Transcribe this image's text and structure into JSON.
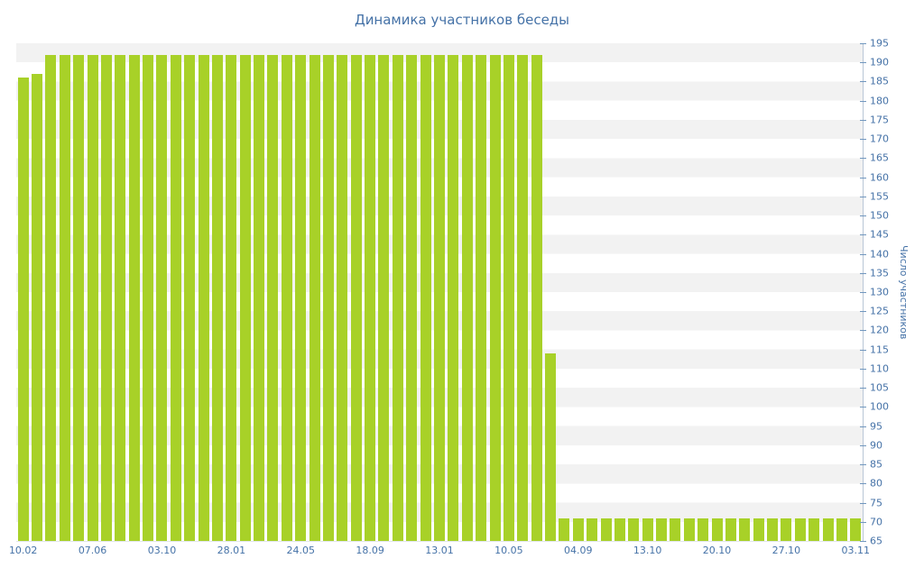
{
  "chart_data": {
    "type": "bar",
    "title": "Динамика участников беседы",
    "ylabel": "Число участников",
    "xlabel": "",
    "y_min": 65,
    "y_max": 195,
    "y_tick_step": 5,
    "grid": "striped-bands",
    "legend": "none",
    "bar_color": "#a8d128",
    "label_color": "#4572a7",
    "stripe_color": "#f2f2f2",
    "x_tick_every": 5,
    "x_tick_labels": [
      "10.02",
      "07.06",
      "03.10",
      "28.01",
      "24.05",
      "18.09",
      "13.01",
      "10.05",
      "04.09",
      "13.10",
      "20.10",
      "27.10",
      "03.11"
    ],
    "values": [
      186,
      187,
      192,
      192,
      192,
      192,
      192,
      192,
      192,
      192,
      192,
      192,
      192,
      192,
      192,
      192,
      192,
      192,
      192,
      192,
      192,
      192,
      192,
      192,
      192,
      192,
      192,
      192,
      192,
      192,
      192,
      192,
      192,
      192,
      192,
      192,
      192,
      192,
      114,
      71,
      71,
      71,
      71,
      71,
      71,
      71,
      71,
      71,
      71,
      71,
      71,
      71,
      71,
      71,
      71,
      71,
      71,
      71,
      71,
      71,
      71
    ]
  }
}
